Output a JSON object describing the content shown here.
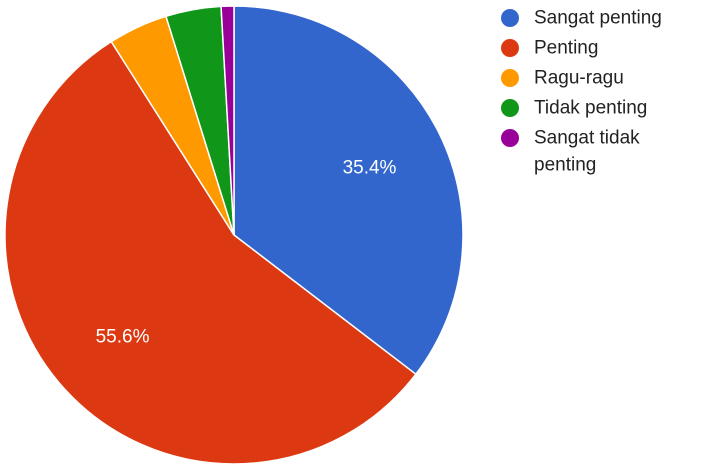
{
  "chart_data": {
    "type": "pie",
    "title": "",
    "slices": [
      {
        "name": "Sangat penting",
        "value": 35.4,
        "label": "35.4%",
        "color": "#3366cc"
      },
      {
        "name": "Penting",
        "value": 55.6,
        "label": "55.6%",
        "color": "#dc3912"
      },
      {
        "name": "Ragu-ragu",
        "value": 4.2,
        "label": "",
        "color": "#ff9900"
      },
      {
        "name": "Tidak penting",
        "value": 3.9,
        "label": "",
        "color": "#109618"
      },
      {
        "name": "Sangat tidak penting",
        "value": 0.9,
        "label": "",
        "color": "#990099"
      }
    ],
    "legend": {
      "position": "right",
      "entries": [
        {
          "lines": [
            "Sangat penting"
          ]
        },
        {
          "lines": [
            "Penting"
          ]
        },
        {
          "lines": [
            "Ragu-ragu"
          ]
        },
        {
          "lines": [
            "Tidak penting"
          ]
        },
        {
          "lines": [
            "Sangat tidak",
            "penting"
          ]
        }
      ]
    }
  }
}
